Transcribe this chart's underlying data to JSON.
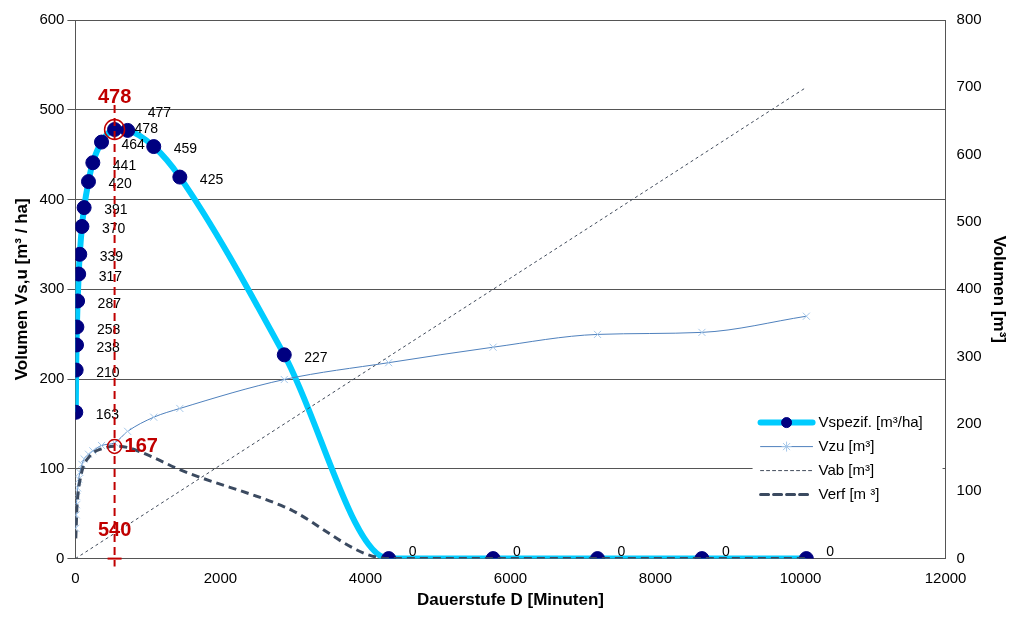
{
  "chart_data": {
    "type": "line",
    "xlabel": "Dauerstufe D [Minuten]",
    "ylabel": "Volumen Vs,u [m³ / ha]",
    "y2label": "Volumen [m³]",
    "x": [
      5,
      10,
      15,
      20,
      30,
      45,
      60,
      90,
      120,
      180,
      240,
      360,
      540,
      720,
      1080,
      1440,
      2880,
      4320,
      5760,
      7200,
      8640,
      10080
    ],
    "series": [
      {
        "name": "Vspezif. [m³/ha]",
        "color": "#00ccff",
        "marker": "circle",
        "line_style": "solid",
        "values": [
          163,
          210,
          238,
          258,
          287,
          317,
          339,
          370,
          391,
          420,
          441,
          464,
          478,
          477,
          459,
          425,
          227,
          0,
          0,
          0,
          0,
          0
        ],
        "value_labels": [
          "163",
          "210",
          "238",
          "258",
          "287",
          "317",
          "339",
          "370",
          "391",
          "420",
          "441",
          "464",
          "478",
          "477",
          "459",
          "425",
          "227",
          "0",
          "0",
          "0",
          "0",
          "0"
        ]
      },
      {
        "name": "Vzu [m³]",
        "color": "#4f81bd",
        "marker": "cross",
        "line_style": "solid",
        "axis": "y2",
        "values": [
          45,
          65,
          80,
          92,
          105,
          118,
          128,
          140,
          148,
          155,
          160,
          168,
          172,
          189,
          210,
          223,
          266,
          291,
          314,
          333,
          336,
          360
        ]
      },
      {
        "name": "Vab [m³]",
        "color": "#404a5a",
        "marker": "none",
        "line_style": "dotted",
        "axis": "y2",
        "x": [
          0,
          10080
        ],
        "values": [
          0,
          700
        ]
      },
      {
        "name": "Verf [m ³]",
        "color": "#3b4a60",
        "marker": "none",
        "line_style": "dashed",
        "axis": "y2",
        "values": [
          30,
          45,
          60,
          75,
          90,
          105,
          115,
          130,
          140,
          150,
          157,
          163,
          167,
          165,
          150,
          132,
          77,
          0,
          0,
          0,
          0,
          0
        ]
      }
    ],
    "xlim": [
      0,
      12000
    ],
    "xticks": [
      0,
      2000,
      4000,
      6000,
      8000,
      10000,
      12000
    ],
    "ylim": [
      0,
      600
    ],
    "yticks": [
      0,
      100,
      200,
      300,
      400,
      500,
      600
    ],
    "y2lim": [
      0,
      800
    ],
    "y2ticks": [
      0,
      100,
      200,
      300,
      400,
      500,
      600,
      700,
      800
    ],
    "grid": "y",
    "legend": "bottom right",
    "ref_lines": [
      {
        "axis": "x",
        "value": 540,
        "label": "540",
        "color": "#c00000",
        "line_style": "dashed"
      }
    ],
    "annotations": [
      {
        "text": "478",
        "x": 540,
        "y": 478
      },
      {
        "text": "167",
        "x": 540,
        "y": 125
      }
    ]
  }
}
